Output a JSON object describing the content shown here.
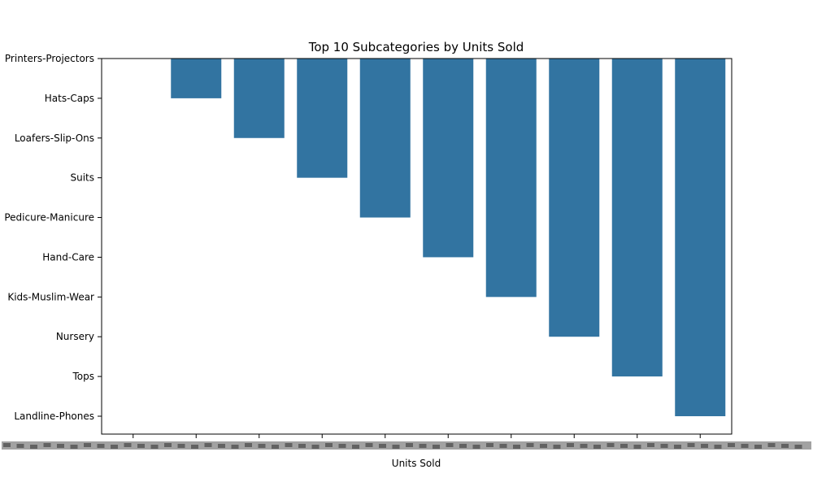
{
  "chart_data": {
    "type": "bar",
    "orientation": "vertical",
    "title": "Top 10 Subcategories by Units Sold",
    "xlabel": "Units Sold",
    "ylabel": "",
    "x_tick_labels_overlapping": true,
    "y_categories": [
      "Printers-Projectors",
      "Hats-Caps",
      "Loafers-Slip-Ons",
      "Suits",
      "Pedicure-Manicure",
      "Hand-Care",
      "Kids-Muslim-Wear",
      "Nursery",
      "Tops",
      "Landline-Phones"
    ],
    "bar_heights_category_index": [
      0,
      1,
      2,
      3,
      4,
      5,
      6,
      7,
      8,
      9
    ],
    "bar_color": "#3274a1",
    "grid": false,
    "legend": "none"
  }
}
